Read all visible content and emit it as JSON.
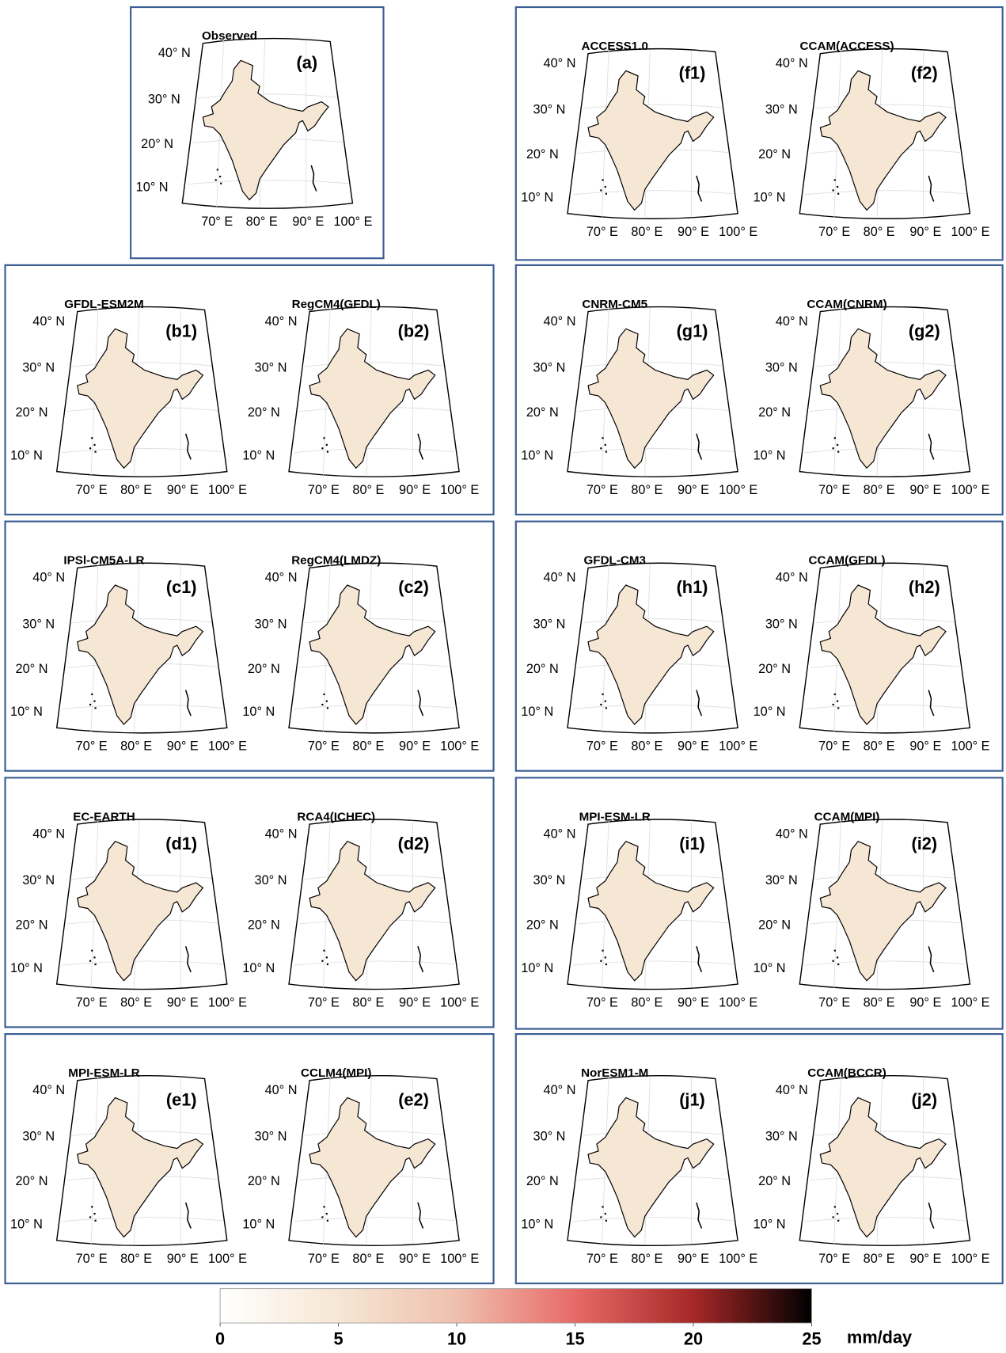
{
  "panels": [
    {
      "maps": [
        {
          "title": "Observed",
          "label": "(a)"
        }
      ]
    },
    {
      "maps": [
        {
          "title": "ACCESS1.0",
          "label": "(f1)"
        },
        {
          "title": "CCAM(ACCESS)",
          "label": "(f2)"
        }
      ]
    },
    {
      "maps": [
        {
          "title": "GFDL-ESM2M",
          "label": "(b1)"
        },
        {
          "title": "RegCM4(GFDL)",
          "label": "(b2)"
        }
      ]
    },
    {
      "maps": [
        {
          "title": "CNRM-CM5",
          "label": "(g1)"
        },
        {
          "title": "CCAM(CNRM)",
          "label": "(g2)"
        }
      ]
    },
    {
      "maps": [
        {
          "title": "IPSl-CM5A-LR",
          "label": "(c1)"
        },
        {
          "title": "RegCM4(LMDZ)",
          "label": "(c2)"
        }
      ]
    },
    {
      "maps": [
        {
          "title": "GFDL-CM3",
          "label": "(h1)"
        },
        {
          "title": "CCAM(GFDL)",
          "label": "(h2)"
        }
      ]
    },
    {
      "maps": [
        {
          "title": "EC-EARTH",
          "label": "(d1)"
        },
        {
          "title": "RCA4(ICHEC)",
          "label": "(d2)"
        }
      ]
    },
    {
      "maps": [
        {
          "title": "MPI-ESM-LR",
          "label": "(i1)"
        },
        {
          "title": "CCAM(MPI)",
          "label": "(i2)"
        }
      ]
    },
    {
      "maps": [
        {
          "title": "MPI-ESM-LR",
          "label": "(e1)"
        },
        {
          "title": "CCLM4(MPI)",
          "label": "(e2)"
        }
      ]
    },
    {
      "maps": [
        {
          "title": "NorESM1-M",
          "label": "(j1)"
        },
        {
          "title": "CCAM(BCCR)",
          "label": "(j2)"
        }
      ]
    }
  ],
  "lat_labels": [
    "40° N",
    "30° N",
    "20° N",
    "10° N"
  ],
  "lon_labels": [
    "70° E",
    "80° E",
    "90° E",
    "100° E"
  ],
  "colorbar": {
    "ticks": [
      0,
      5,
      10,
      15,
      20,
      25
    ],
    "lim": [
      0,
      25
    ],
    "unit": "mm/day",
    "colors": [
      "#ffffff",
      "#f6e6d4",
      "#efc0ae",
      "#e76a68",
      "#a82828",
      "#000000"
    ]
  }
}
